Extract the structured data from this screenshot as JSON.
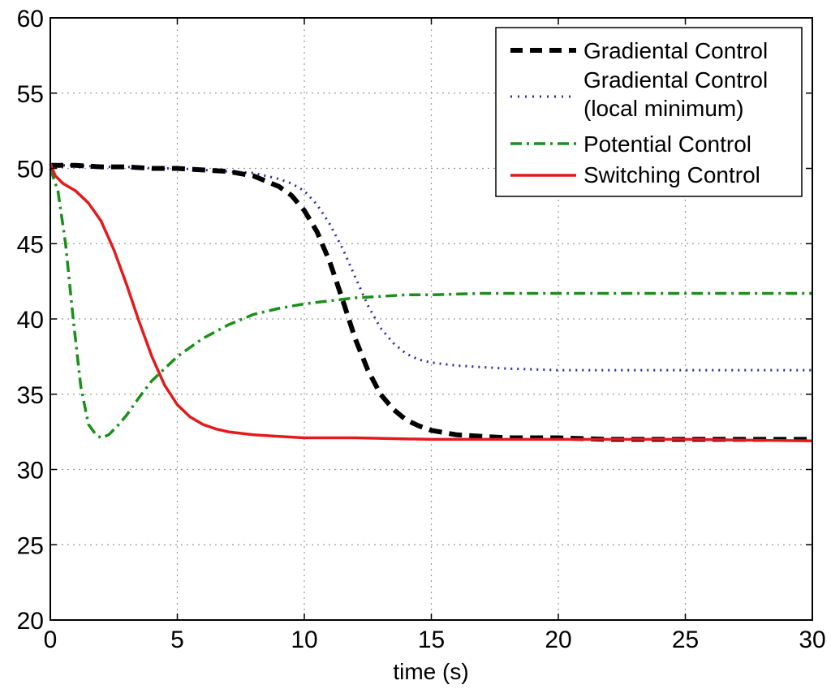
{
  "chart_data": {
    "type": "line",
    "title": "",
    "xlabel": "time (s)",
    "ylabel": "",
    "xlim": [
      0,
      30
    ],
    "ylim": [
      20,
      60
    ],
    "xticks": [
      0,
      5,
      10,
      15,
      20,
      25,
      30
    ],
    "yticks": [
      20,
      25,
      30,
      35,
      40,
      45,
      50,
      55,
      60
    ],
    "grid": true,
    "legend_position": "top-right",
    "series": [
      {
        "name": "Gradiental Control",
        "color": "#000000",
        "style": "dashed",
        "x": [
          0,
          1,
          2,
          3,
          4,
          5,
          6,
          7,
          8,
          9,
          9.5,
          10,
          10.5,
          11,
          11.5,
          12,
          12.5,
          13,
          13.5,
          14,
          14.5,
          15,
          16,
          17,
          18,
          20,
          22,
          25,
          28,
          30
        ],
        "y": [
          50.2,
          50.2,
          50.1,
          50.1,
          50.0,
          50.0,
          49.9,
          49.8,
          49.5,
          48.8,
          48.2,
          47.2,
          45.8,
          43.8,
          41.3,
          38.7,
          36.6,
          35.0,
          34.0,
          33.3,
          32.9,
          32.6,
          32.3,
          32.2,
          32.1,
          32.1,
          32.0,
          32.0,
          32.0,
          32.0
        ]
      },
      {
        "name": "Gradiental Control",
        "name_line2": "(local minimum)",
        "color": "#2b2b9e",
        "style": "dotted",
        "x": [
          0,
          1,
          2,
          3,
          4,
          5,
          6,
          7,
          8,
          9,
          9.5,
          10,
          10.5,
          11,
          11.5,
          12,
          12.5,
          13,
          13.5,
          14,
          14.5,
          15,
          16,
          17,
          18,
          20,
          22,
          25,
          28,
          30
        ],
        "y": [
          50.2,
          50.2,
          50.1,
          50.1,
          50.0,
          50.0,
          49.9,
          49.8,
          49.7,
          49.3,
          49.0,
          48.5,
          47.6,
          46.3,
          44.7,
          42.8,
          40.9,
          39.4,
          38.4,
          37.7,
          37.3,
          37.1,
          36.9,
          36.8,
          36.7,
          36.6,
          36.6,
          36.6,
          36.6,
          36.6
        ]
      },
      {
        "name": "Potential Control",
        "color": "#1a8f1a",
        "style": "dashdot",
        "x": [
          0,
          0.3,
          0.6,
          0.9,
          1.2,
          1.5,
          1.8,
          2.0,
          2.3,
          2.7,
          3,
          3.5,
          4,
          5,
          6,
          7,
          8,
          9,
          10,
          11,
          12,
          13,
          14,
          15,
          17,
          20,
          23,
          26,
          30
        ],
        "y": [
          50.0,
          48.5,
          45.0,
          40.0,
          35.5,
          33.0,
          32.3,
          32.1,
          32.3,
          33.0,
          33.6,
          34.8,
          35.9,
          37.5,
          38.7,
          39.6,
          40.3,
          40.7,
          41.0,
          41.2,
          41.4,
          41.5,
          41.6,
          41.6,
          41.7,
          41.7,
          41.7,
          41.7,
          41.7
        ]
      },
      {
        "name": "Switching Control",
        "color": "#e31a1c",
        "style": "solid",
        "x": [
          0,
          0.2,
          0.5,
          1.0,
          1.5,
          2.0,
          2.5,
          3.0,
          3.5,
          4.0,
          4.5,
          5.0,
          5.5,
          6.0,
          6.5,
          7.0,
          8.0,
          9.0,
          10,
          12,
          15,
          20,
          25,
          30
        ],
        "y": [
          50.3,
          49.5,
          49.0,
          48.5,
          47.7,
          46.5,
          44.6,
          42.3,
          39.8,
          37.5,
          35.6,
          34.3,
          33.5,
          33.0,
          32.7,
          32.5,
          32.3,
          32.2,
          32.1,
          32.1,
          32.0,
          32.0,
          32.0,
          31.9
        ]
      }
    ]
  }
}
